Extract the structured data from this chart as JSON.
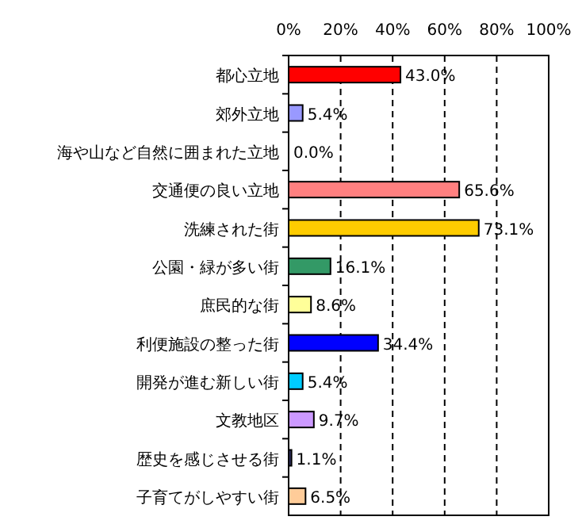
{
  "chart_data": {
    "type": "bar",
    "orientation": "horizontal",
    "categories": [
      "都心立地",
      "郊外立地",
      "海や山など自然に囲まれた立地",
      "交通便の良い立地",
      "洗練された街",
      "公園・緑が多い街",
      "庶民的な街",
      "利便施設の整った街",
      "開発が進む新しい街",
      "文教地区",
      "歴史を感じさせる街",
      "子育てがしやすい街"
    ],
    "values": [
      43.0,
      5.4,
      0.0,
      65.6,
      73.1,
      16.1,
      8.6,
      34.4,
      5.4,
      9.7,
      1.1,
      6.5
    ],
    "colors": [
      "#ff0000",
      "#9999ff",
      null,
      "#ff8080",
      "#ffcc00",
      "#339966",
      "#ffff99",
      "#0000ff",
      "#00ccff",
      "#cc99ff",
      "#333366",
      "#ffcc99"
    ],
    "value_labels": [
      "43.0%",
      "5.4%",
      "0.0%",
      "65.6%",
      "73.1%",
      "16.1%",
      "8.6%",
      "34.4%",
      "5.4%",
      "9.7%",
      "1.1%",
      "6.5%"
    ],
    "xlim": [
      0,
      100
    ],
    "xticks": [
      {
        "value": 0,
        "label": "0%"
      },
      {
        "value": 20,
        "label": "20%"
      },
      {
        "value": 40,
        "label": "40%"
      },
      {
        "value": 60,
        "label": "60%"
      },
      {
        "value": 80,
        "label": "80%"
      },
      {
        "value": 100,
        "label": "100%"
      }
    ],
    "grid": "x",
    "line_style": "dashed"
  }
}
